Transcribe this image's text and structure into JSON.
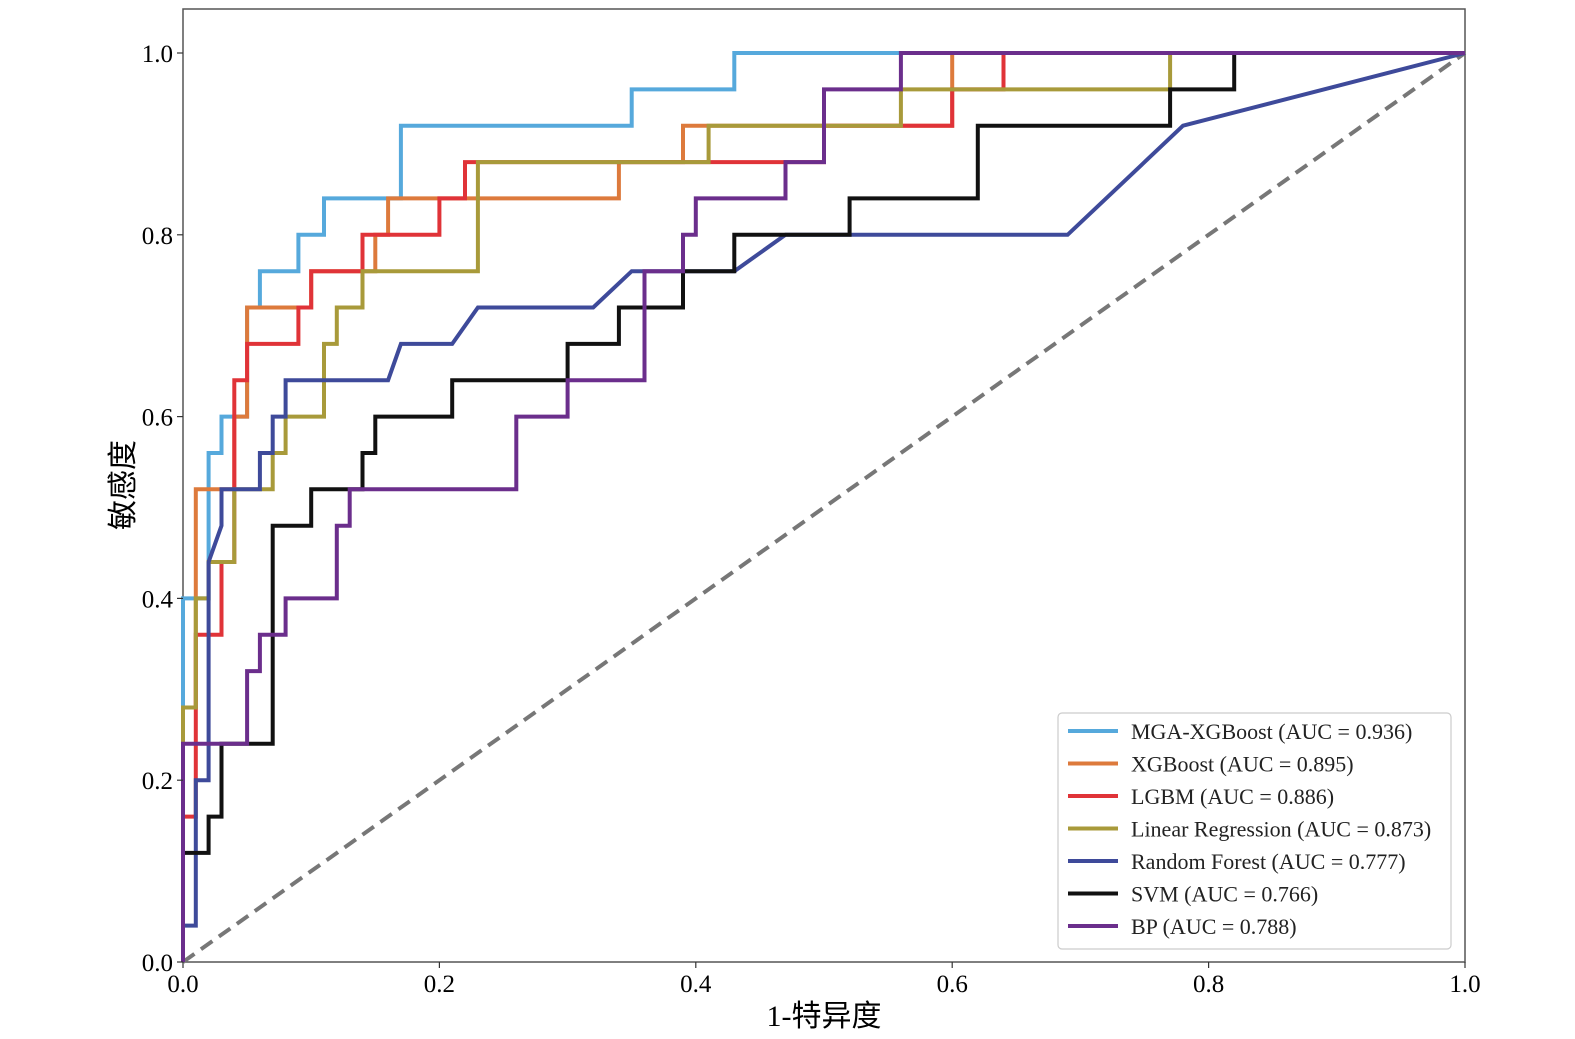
{
  "chart_data": {
    "type": "line",
    "xlabel": "1-特异度",
    "ylabel": "敏感度",
    "xlim": [
      0.0,
      1.0
    ],
    "ylim": [
      0.0,
      1.0
    ],
    "xticks": [
      "0.0",
      "0.2",
      "0.4",
      "0.6",
      "0.8",
      "1.0"
    ],
    "yticks": [
      "0.0",
      "0.2",
      "0.4",
      "0.6",
      "0.8",
      "1.0"
    ],
    "grid": false,
    "legend_position": "bottom-right",
    "reference_line": {
      "style": "dashed",
      "color": "#777777",
      "points": [
        [
          0,
          0
        ],
        [
          1,
          1
        ]
      ]
    },
    "series": [
      {
        "name": "MGA-XGBoost (AUC = 0.936)",
        "color": "#56a9dc",
        "points": [
          [
            0,
            0
          ],
          [
            0,
            0.4
          ],
          [
            0.02,
            0.4
          ],
          [
            0.02,
            0.56
          ],
          [
            0.03,
            0.56
          ],
          [
            0.03,
            0.6
          ],
          [
            0.05,
            0.6
          ],
          [
            0.05,
            0.72
          ],
          [
            0.06,
            0.72
          ],
          [
            0.06,
            0.76
          ],
          [
            0.09,
            0.76
          ],
          [
            0.09,
            0.8
          ],
          [
            0.11,
            0.8
          ],
          [
            0.11,
            0.84
          ],
          [
            0.17,
            0.84
          ],
          [
            0.17,
            0.92
          ],
          [
            0.35,
            0.92
          ],
          [
            0.35,
            0.96
          ],
          [
            0.43,
            0.96
          ],
          [
            0.43,
            1.0
          ],
          [
            1.0,
            1.0
          ]
        ]
      },
      {
        "name": "XGBoost (AUC = 0.895)",
        "color": "#dd7a3c",
        "points": [
          [
            0,
            0
          ],
          [
            0,
            0.28
          ],
          [
            0.01,
            0.28
          ],
          [
            0.01,
            0.52
          ],
          [
            0.04,
            0.52
          ],
          [
            0.04,
            0.6
          ],
          [
            0.05,
            0.6
          ],
          [
            0.05,
            0.72
          ],
          [
            0.1,
            0.72
          ],
          [
            0.1,
            0.76
          ],
          [
            0.15,
            0.76
          ],
          [
            0.15,
            0.8
          ],
          [
            0.16,
            0.8
          ],
          [
            0.16,
            0.84
          ],
          [
            0.34,
            0.84
          ],
          [
            0.34,
            0.88
          ],
          [
            0.39,
            0.88
          ],
          [
            0.39,
            0.92
          ],
          [
            0.6,
            0.92
          ],
          [
            0.6,
            1.0
          ],
          [
            1.0,
            1.0
          ]
        ]
      },
      {
        "name": "LGBM (AUC = 0.886)",
        "color": "#e03338",
        "points": [
          [
            0,
            0
          ],
          [
            0,
            0.16
          ],
          [
            0.01,
            0.16
          ],
          [
            0.01,
            0.36
          ],
          [
            0.03,
            0.36
          ],
          [
            0.03,
            0.44
          ],
          [
            0.04,
            0.44
          ],
          [
            0.04,
            0.64
          ],
          [
            0.05,
            0.64
          ],
          [
            0.05,
            0.68
          ],
          [
            0.09,
            0.68
          ],
          [
            0.09,
            0.72
          ],
          [
            0.1,
            0.72
          ],
          [
            0.1,
            0.76
          ],
          [
            0.14,
            0.76
          ],
          [
            0.14,
            0.8
          ],
          [
            0.2,
            0.8
          ],
          [
            0.2,
            0.84
          ],
          [
            0.22,
            0.84
          ],
          [
            0.22,
            0.88
          ],
          [
            0.5,
            0.88
          ],
          [
            0.5,
            0.92
          ],
          [
            0.6,
            0.92
          ],
          [
            0.6,
            0.96
          ],
          [
            0.64,
            0.96
          ],
          [
            0.64,
            1.0
          ],
          [
            1.0,
            1.0
          ]
        ]
      },
      {
        "name": "Linear Regression (AUC = 0.873)",
        "color": "#a89a3a",
        "points": [
          [
            0,
            0
          ],
          [
            0,
            0.28
          ],
          [
            0.01,
            0.28
          ],
          [
            0.01,
            0.4
          ],
          [
            0.02,
            0.4
          ],
          [
            0.02,
            0.44
          ],
          [
            0.04,
            0.44
          ],
          [
            0.04,
            0.52
          ],
          [
            0.07,
            0.52
          ],
          [
            0.07,
            0.56
          ],
          [
            0.08,
            0.56
          ],
          [
            0.08,
            0.6
          ],
          [
            0.11,
            0.6
          ],
          [
            0.11,
            0.68
          ],
          [
            0.12,
            0.68
          ],
          [
            0.12,
            0.72
          ],
          [
            0.14,
            0.72
          ],
          [
            0.14,
            0.76
          ],
          [
            0.23,
            0.76
          ],
          [
            0.23,
            0.88
          ],
          [
            0.41,
            0.88
          ],
          [
            0.41,
            0.92
          ],
          [
            0.56,
            0.92
          ],
          [
            0.56,
            0.96
          ],
          [
            0.77,
            0.96
          ],
          [
            0.77,
            1.0
          ],
          [
            1.0,
            1.0
          ]
        ]
      },
      {
        "name": "Random Forest (AUC = 0.777)",
        "color": "#3e4a9a",
        "points": [
          [
            0,
            0
          ],
          [
            0,
            0.04
          ],
          [
            0.01,
            0.04
          ],
          [
            0.01,
            0.2
          ],
          [
            0.02,
            0.2
          ],
          [
            0.02,
            0.44
          ],
          [
            0.03,
            0.48
          ],
          [
            0.03,
            0.52
          ],
          [
            0.06,
            0.52
          ],
          [
            0.06,
            0.56
          ],
          [
            0.07,
            0.56
          ],
          [
            0.07,
            0.6
          ],
          [
            0.08,
            0.6
          ],
          [
            0.08,
            0.64
          ],
          [
            0.16,
            0.64
          ],
          [
            0.17,
            0.68
          ],
          [
            0.21,
            0.68
          ],
          [
            0.23,
            0.72
          ],
          [
            0.32,
            0.72
          ],
          [
            0.35,
            0.76
          ],
          [
            0.43,
            0.76
          ],
          [
            0.47,
            0.8
          ],
          [
            0.69,
            0.8
          ],
          [
            0.78,
            0.92
          ],
          [
            1.0,
            1.0
          ]
        ]
      },
      {
        "name": "SVM (AUC = 0.766)",
        "color": "#111111",
        "points": [
          [
            0,
            0
          ],
          [
            0,
            0.12
          ],
          [
            0.02,
            0.12
          ],
          [
            0.02,
            0.16
          ],
          [
            0.03,
            0.16
          ],
          [
            0.03,
            0.24
          ],
          [
            0.07,
            0.24
          ],
          [
            0.07,
            0.48
          ],
          [
            0.1,
            0.48
          ],
          [
            0.1,
            0.52
          ],
          [
            0.14,
            0.52
          ],
          [
            0.14,
            0.56
          ],
          [
            0.15,
            0.56
          ],
          [
            0.15,
            0.6
          ],
          [
            0.21,
            0.6
          ],
          [
            0.21,
            0.64
          ],
          [
            0.3,
            0.64
          ],
          [
            0.3,
            0.68
          ],
          [
            0.34,
            0.68
          ],
          [
            0.34,
            0.72
          ],
          [
            0.39,
            0.72
          ],
          [
            0.39,
            0.76
          ],
          [
            0.43,
            0.76
          ],
          [
            0.43,
            0.8
          ],
          [
            0.52,
            0.8
          ],
          [
            0.52,
            0.84
          ],
          [
            0.62,
            0.84
          ],
          [
            0.62,
            0.92
          ],
          [
            0.77,
            0.92
          ],
          [
            0.77,
            0.96
          ],
          [
            0.82,
            0.96
          ],
          [
            0.82,
            1.0
          ],
          [
            1.0,
            1.0
          ]
        ]
      },
      {
        "name": "BP (AUC = 0.788)",
        "color": "#6b2e8c",
        "points": [
          [
            0,
            0
          ],
          [
            0,
            0.24
          ],
          [
            0.05,
            0.24
          ],
          [
            0.05,
            0.32
          ],
          [
            0.06,
            0.32
          ],
          [
            0.06,
            0.36
          ],
          [
            0.08,
            0.36
          ],
          [
            0.08,
            0.4
          ],
          [
            0.12,
            0.4
          ],
          [
            0.12,
            0.48
          ],
          [
            0.13,
            0.48
          ],
          [
            0.13,
            0.52
          ],
          [
            0.26,
            0.52
          ],
          [
            0.26,
            0.6
          ],
          [
            0.3,
            0.6
          ],
          [
            0.3,
            0.64
          ],
          [
            0.36,
            0.64
          ],
          [
            0.36,
            0.76
          ],
          [
            0.39,
            0.76
          ],
          [
            0.39,
            0.8
          ],
          [
            0.4,
            0.8
          ],
          [
            0.4,
            0.84
          ],
          [
            0.47,
            0.84
          ],
          [
            0.47,
            0.88
          ],
          [
            0.5,
            0.88
          ],
          [
            0.5,
            0.96
          ],
          [
            0.56,
            0.96
          ],
          [
            0.56,
            1.0
          ],
          [
            1.0,
            1.0
          ]
        ]
      }
    ]
  }
}
